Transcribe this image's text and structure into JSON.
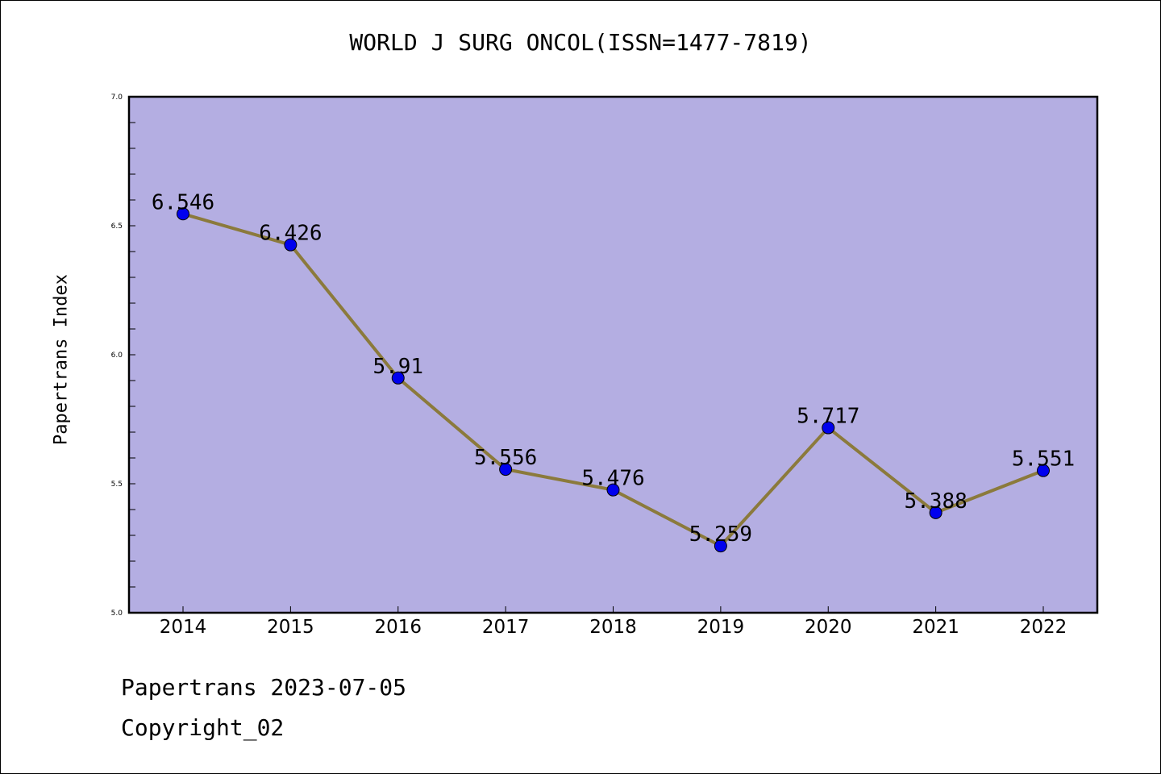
{
  "chart_data": {
    "type": "line",
    "title": "WORLD J SURG ONCOL(ISSN=1477-7819)",
    "xlabel": "",
    "ylabel": "Papertrans Index",
    "categories": [
      "2014",
      "2015",
      "2016",
      "2017",
      "2018",
      "2019",
      "2020",
      "2021",
      "2022"
    ],
    "values": [
      6.546,
      6.426,
      5.91,
      5.556,
      5.476,
      5.259,
      5.717,
      5.388,
      5.551
    ],
    "data_labels": [
      "6.546",
      "6.426",
      "5.91",
      "5.556",
      "5.476",
      "5.259",
      "5.717",
      "5.388",
      "5.551"
    ],
    "ylim": [
      5.0,
      7.0
    ],
    "yticks": [
      "5.0",
      "5.5",
      "6.0",
      "6.5",
      "7.0"
    ],
    "grid": false,
    "colors": {
      "plot_background": "#b4aee2",
      "line": "#8b7a3c",
      "marker": "#0000ee"
    }
  },
  "footer": {
    "date_line": "Papertrans 2023-07-05",
    "copyright_line": "Copyright_02"
  }
}
